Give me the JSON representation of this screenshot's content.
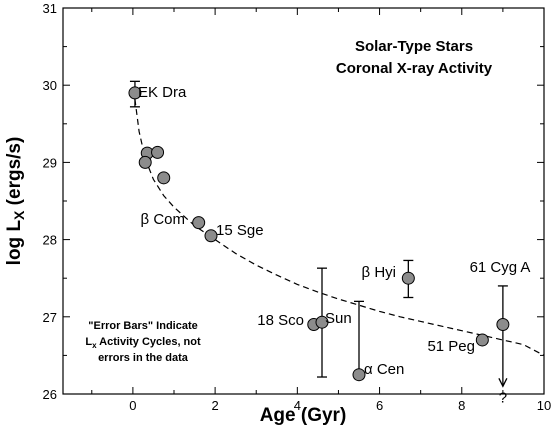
{
  "chart_data": {
    "type": "scatter",
    "title": "Solar-Type Stars",
    "subtitle": "Coronal X-ray Activity",
    "xlabel": "Age (Gyr)",
    "ylabel_main": "log L",
    "ylabel_sub": "X",
    "ylabel_units": " (ergs/s)",
    "xlim": [
      -1.7,
      10
    ],
    "ylim": [
      26,
      31
    ],
    "x_ticks": [
      0,
      2,
      4,
      6,
      8,
      10
    ],
    "y_ticks": [
      26,
      27,
      28,
      29,
      30,
      31
    ],
    "grid": false,
    "points": [
      {
        "x": 0.05,
        "y": 29.9,
        "label": "EK Dra"
      },
      {
        "x": 0.35,
        "y": 29.12,
        "label": ""
      },
      {
        "x": 0.3,
        "y": 29.0,
        "label": ""
      },
      {
        "x": 0.6,
        "y": 29.13,
        "label": ""
      },
      {
        "x": 0.75,
        "y": 28.8,
        "label": ""
      },
      {
        "x": 1.6,
        "y": 28.22,
        "label": "β Com"
      },
      {
        "x": 1.9,
        "y": 28.05,
        "label": "15 Sge"
      },
      {
        "x": 4.4,
        "y": 26.9,
        "label": "18 Sco"
      },
      {
        "x": 4.6,
        "y": 26.93,
        "label": "Sun"
      },
      {
        "x": 5.5,
        "y": 26.25,
        "label": "α Cen"
      },
      {
        "x": 6.7,
        "y": 27.5,
        "label": "β Hyi"
      },
      {
        "x": 8.5,
        "y": 26.7,
        "label": "51 Peg"
      },
      {
        "x": 9.0,
        "y": 26.9,
        "label": "61 Cyg A"
      }
    ],
    "activity_ranges": [
      {
        "x": 0.05,
        "low": 29.72,
        "high": 30.05
      },
      {
        "x": 4.6,
        "low": 26.22,
        "high": 27.63
      },
      {
        "x": 5.5,
        "low": 26.2,
        "high": 27.2
      },
      {
        "x": 6.7,
        "low": 27.25,
        "high": 27.73
      },
      {
        "x": 9.0,
        "low": 26.1,
        "high": 27.4
      }
    ],
    "upper_limit_marker": "?",
    "fit_curve": [
      [
        0.05,
        29.82
      ],
      [
        0.15,
        29.4
      ],
      [
        0.3,
        29.05
      ],
      [
        0.5,
        28.78
      ],
      [
        0.75,
        28.57
      ],
      [
        1.0,
        28.42
      ],
      [
        1.5,
        28.18
      ],
      [
        2.0,
        28.0
      ],
      [
        2.5,
        27.82
      ],
      [
        3.0,
        27.67
      ],
      [
        3.5,
        27.54
      ],
      [
        4.0,
        27.42
      ],
      [
        4.5,
        27.32
      ],
      [
        5.0,
        27.23
      ],
      [
        5.5,
        27.15
      ],
      [
        6.0,
        27.07
      ],
      [
        6.5,
        27.0
      ],
      [
        7.0,
        26.94
      ],
      [
        7.5,
        26.88
      ],
      [
        8.0,
        26.82
      ],
      [
        8.5,
        26.76
      ],
      [
        9.0,
        26.7
      ],
      [
        9.5,
        26.64
      ],
      [
        10.0,
        26.5
      ]
    ],
    "note_lines": [
      "\"Error Bars\" Indicate",
      "L",
      "x",
      " Activity Cycles, not",
      "errors in the data"
    ]
  },
  "colors": {
    "marker_fill": "#8c8c8c",
    "marker_stroke": "#000000",
    "curve": "#000000",
    "axis": "#000000"
  }
}
